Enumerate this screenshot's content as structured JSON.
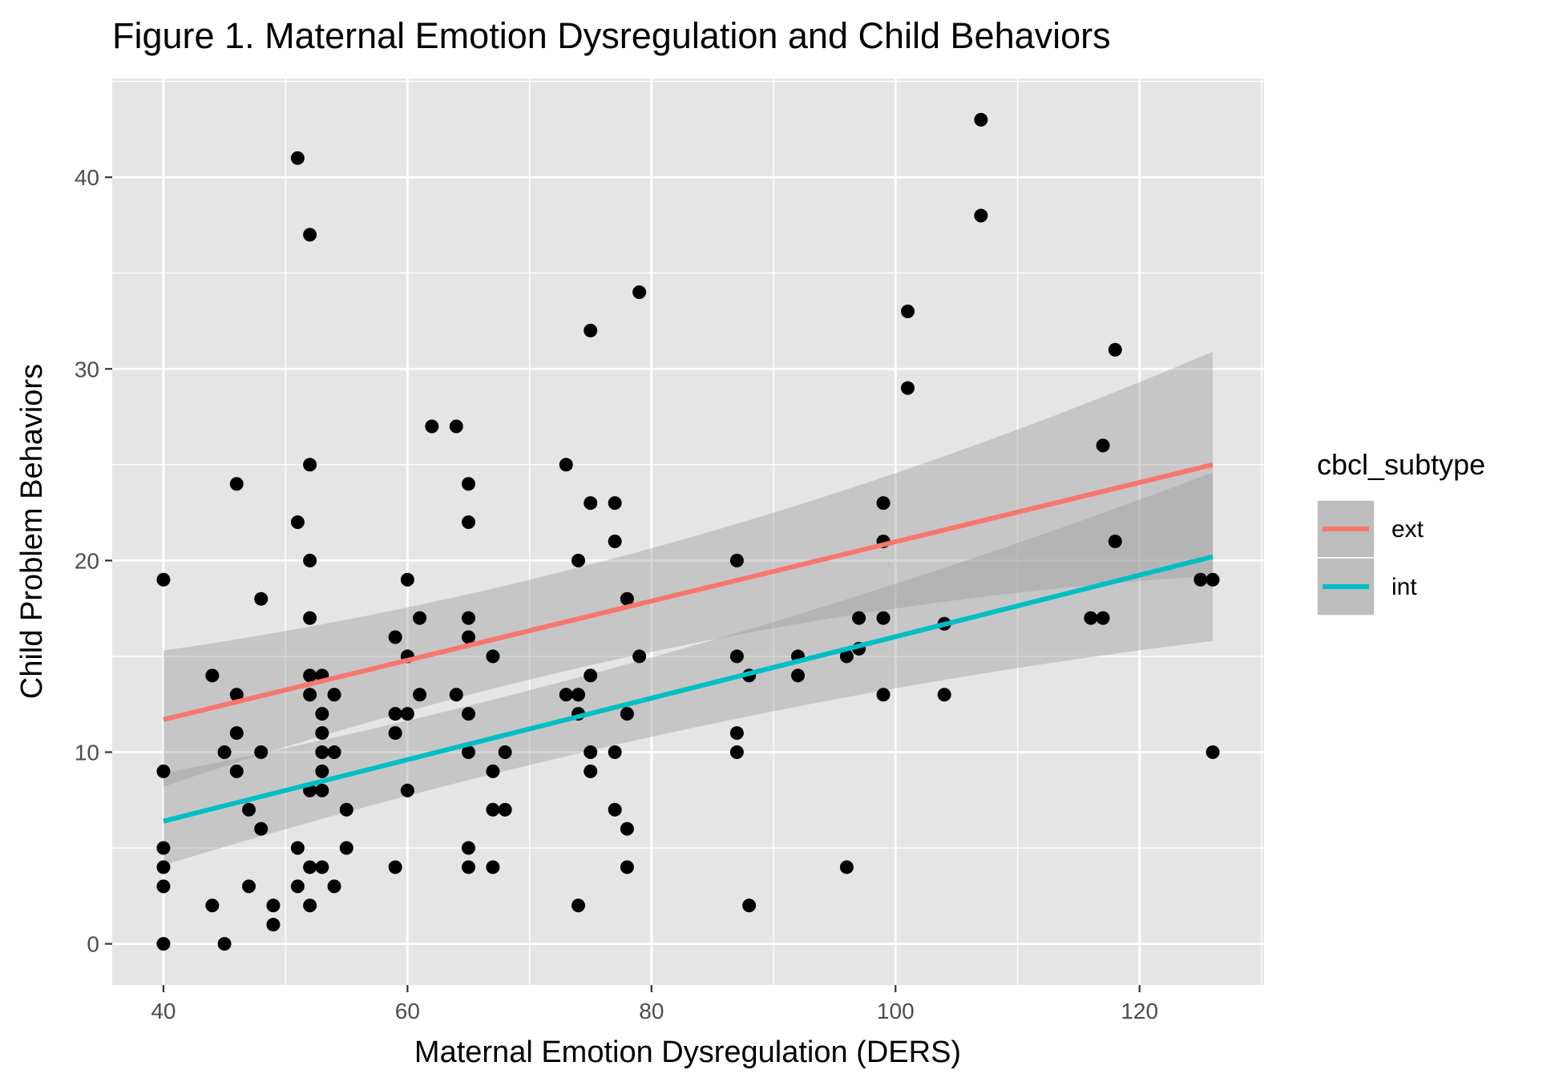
{
  "chart_data": {
    "type": "scatter",
    "title": "Figure 1. Maternal Emotion Dysregulation and Child Behaviors",
    "xlabel": "Maternal Emotion Dysregulation (DERS)",
    "ylabel": "Child Problem Behaviors",
    "xlim": [
      35.8,
      130.2
    ],
    "ylim": [
      -2.15,
      45.15
    ],
    "x_ticks": [
      "40",
      "60",
      "80",
      "100",
      "120"
    ],
    "y_ticks": [
      "0",
      "10",
      "20",
      "30",
      "40"
    ],
    "grid": true,
    "legend": {
      "title": "cbcl_subtype",
      "position": "right",
      "entries": [
        "ext",
        "int"
      ]
    },
    "series": [
      {
        "name": "ext",
        "color": "#F8766D",
        "x": [
          40,
          126
        ],
        "y": [
          11.7,
          25.0
        ],
        "ci_lower": [
          8.2,
          19.2
        ],
        "ci_upper": [
          15.3,
          30.9
        ]
      },
      {
        "name": "int",
        "color": "#00BFC4",
        "x": [
          40,
          126
        ],
        "y": [
          6.4,
          20.2
        ],
        "ci_lower": [
          4.1,
          15.8
        ],
        "ci_upper": [
          8.9,
          24.6
        ]
      }
    ],
    "points": [
      [
        40,
        19
      ],
      [
        40,
        9
      ],
      [
        40,
        5
      ],
      [
        40,
        4
      ],
      [
        40,
        3
      ],
      [
        40,
        0
      ],
      [
        44,
        14
      ],
      [
        44,
        2
      ],
      [
        45,
        10
      ],
      [
        45,
        0
      ],
      [
        46,
        24
      ],
      [
        46,
        13
      ],
      [
        46,
        11
      ],
      [
        46,
        9
      ],
      [
        47,
        7
      ],
      [
        47,
        3
      ],
      [
        48,
        18
      ],
      [
        48,
        10
      ],
      [
        48,
        6
      ],
      [
        49,
        2
      ],
      [
        49,
        1
      ],
      [
        51,
        41
      ],
      [
        51,
        22
      ],
      [
        51,
        5
      ],
      [
        51,
        3
      ],
      [
        52,
        37
      ],
      [
        52,
        25
      ],
      [
        52,
        20
      ],
      [
        52,
        17
      ],
      [
        52,
        14
      ],
      [
        52,
        13
      ],
      [
        52,
        8
      ],
      [
        52,
        4
      ],
      [
        52,
        2
      ],
      [
        53,
        14
      ],
      [
        53,
        12
      ],
      [
        53,
        11
      ],
      [
        53,
        10
      ],
      [
        53,
        9
      ],
      [
        53,
        8
      ],
      [
        53,
        4
      ],
      [
        54,
        13
      ],
      [
        54,
        10
      ],
      [
        54,
        3
      ],
      [
        55,
        7
      ],
      [
        55,
        5
      ],
      [
        59,
        16
      ],
      [
        59,
        12
      ],
      [
        59,
        11
      ],
      [
        59,
        4
      ],
      [
        60,
        19
      ],
      [
        60,
        15
      ],
      [
        60,
        12
      ],
      [
        60,
        8
      ],
      [
        61,
        17
      ],
      [
        61,
        13
      ],
      [
        62,
        27
      ],
      [
        64,
        27
      ],
      [
        64,
        13
      ],
      [
        65,
        24
      ],
      [
        65,
        22
      ],
      [
        65,
        17
      ],
      [
        65,
        16
      ],
      [
        65,
        12
      ],
      [
        65,
        10
      ],
      [
        65,
        5
      ],
      [
        65,
        4
      ],
      [
        67,
        15
      ],
      [
        67,
        9
      ],
      [
        67,
        7
      ],
      [
        67,
        4
      ],
      [
        68,
        10
      ],
      [
        68,
        7
      ],
      [
        73,
        25
      ],
      [
        73,
        13
      ],
      [
        74,
        20
      ],
      [
        74,
        13
      ],
      [
        74,
        12
      ],
      [
        74,
        2
      ],
      [
        75,
        32
      ],
      [
        75,
        23
      ],
      [
        75,
        14
      ],
      [
        75,
        10
      ],
      [
        75,
        9
      ],
      [
        77,
        23
      ],
      [
        77,
        21
      ],
      [
        77,
        10
      ],
      [
        77,
        7
      ],
      [
        78,
        18
      ],
      [
        78,
        12
      ],
      [
        78,
        6
      ],
      [
        78,
        4
      ],
      [
        79,
        34
      ],
      [
        79,
        15
      ],
      [
        87,
        20
      ],
      [
        87,
        15
      ],
      [
        87,
        11
      ],
      [
        87,
        10
      ],
      [
        88,
        14
      ],
      [
        88,
        2
      ],
      [
        92,
        15
      ],
      [
        92,
        14
      ],
      [
        96,
        15
      ],
      [
        96,
        4
      ],
      [
        97,
        17
      ],
      [
        97,
        15.4
      ],
      [
        99,
        23
      ],
      [
        99,
        21
      ],
      [
        99,
        17
      ],
      [
        99,
        13
      ],
      [
        101,
        33
      ],
      [
        101,
        29
      ],
      [
        104,
        16.7
      ],
      [
        104,
        13
      ],
      [
        107,
        43
      ],
      [
        107,
        38
      ],
      [
        116,
        17
      ],
      [
        117,
        26
      ],
      [
        117,
        17
      ],
      [
        118,
        31
      ],
      [
        118,
        21
      ],
      [
        125,
        19
      ],
      [
        126,
        19
      ],
      [
        126,
        10
      ]
    ]
  }
}
